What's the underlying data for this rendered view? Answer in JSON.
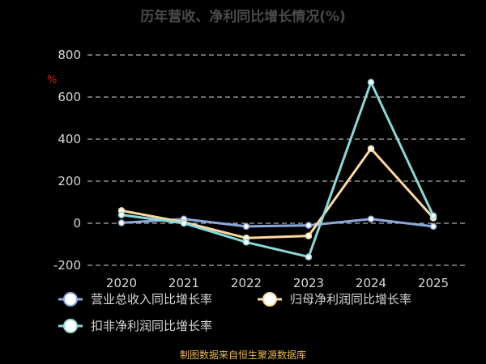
{
  "chart_data": {
    "type": "line",
    "title": "历年营收、净利同比增长情况(%)",
    "unit_label": "%",
    "categories": [
      "2020",
      "2021",
      "2022",
      "2023",
      "2024",
      "2025"
    ],
    "ylim": [
      -200,
      800
    ],
    "yticks": [
      -200,
      0,
      200,
      400,
      600,
      800
    ],
    "ytick_labels": [
      "-200",
      "0",
      "200",
      "400",
      "600",
      "800"
    ],
    "grid": true,
    "legend_position": "bottom",
    "series": [
      {
        "name": "营业总收入同比增长率",
        "color": "#8fa8dc",
        "values": [
          2,
          20,
          -15,
          -10,
          20,
          -15
        ]
      },
      {
        "name": "归母净利润同比增长率",
        "color": "#fdd9a0",
        "values": [
          60,
          5,
          -70,
          -60,
          355,
          25
        ]
      },
      {
        "name": "扣非净利润同比增长率",
        "color": "#8ad8d8",
        "values": [
          40,
          0,
          -90,
          -160,
          670,
          35
        ]
      }
    ],
    "source": "制图数据来自恒生聚源数据库"
  }
}
